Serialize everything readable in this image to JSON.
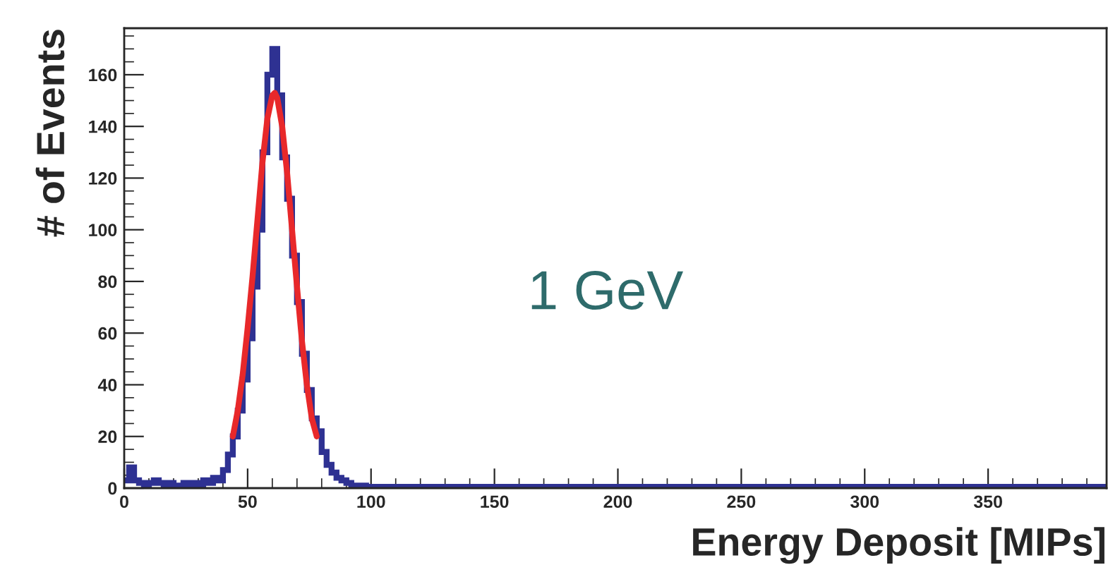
{
  "chart_data": {
    "type": "histogram",
    "xlabel": "Energy Deposit [MIPs]",
    "ylabel": "# of Events",
    "annotations": [
      "1 GeV"
    ],
    "bins": [
      0,
      2,
      4,
      6,
      8,
      10,
      12,
      14,
      16,
      18,
      20,
      22,
      24,
      26,
      28,
      30,
      32,
      34,
      36,
      38,
      40,
      42,
      44,
      46,
      48,
      50,
      52,
      54,
      56,
      58,
      60,
      62,
      64,
      66,
      68,
      70,
      72,
      74,
      76,
      78,
      80,
      82,
      84,
      86,
      88,
      90,
      92,
      94,
      96,
      98,
      100,
      398
    ],
    "series": [
      {
        "color": "#2e3192",
        "values": [
          3,
          8,
          3,
          2,
          1,
          2,
          3,
          2,
          1,
          2,
          1,
          1,
          2,
          1,
          2,
          1,
          3,
          2,
          4,
          3,
          7,
          13,
          20,
          30,
          42,
          58,
          78,
          100,
          130,
          160,
          170,
          152,
          128,
          112,
          90,
          72,
          52,
          38,
          27,
          22,
          14,
          9,
          6,
          4,
          3,
          2,
          1,
          1,
          1,
          0,
          0.5
        ]
      },
      {
        "type": "line",
        "color": "#e8282a",
        "x": [
          44,
          46,
          48,
          50,
          52,
          54,
          56,
          58,
          60,
          61,
          62,
          64,
          66,
          68,
          70,
          72,
          74,
          76,
          78
        ],
        "values": [
          20,
          30,
          44,
          62,
          82,
          104,
          126,
          143,
          152,
          153,
          151,
          140,
          122,
          100,
          78,
          57,
          40,
          27,
          20
        ]
      }
    ],
    "xlim": [
      0,
      398
    ],
    "ylim": [
      0,
      178
    ],
    "xticks": [
      0,
      50,
      100,
      150,
      200,
      250,
      300,
      350
    ],
    "yticks": [
      0,
      20,
      40,
      60,
      80,
      100,
      120,
      140,
      160
    ],
    "grid": false,
    "legend": false
  }
}
